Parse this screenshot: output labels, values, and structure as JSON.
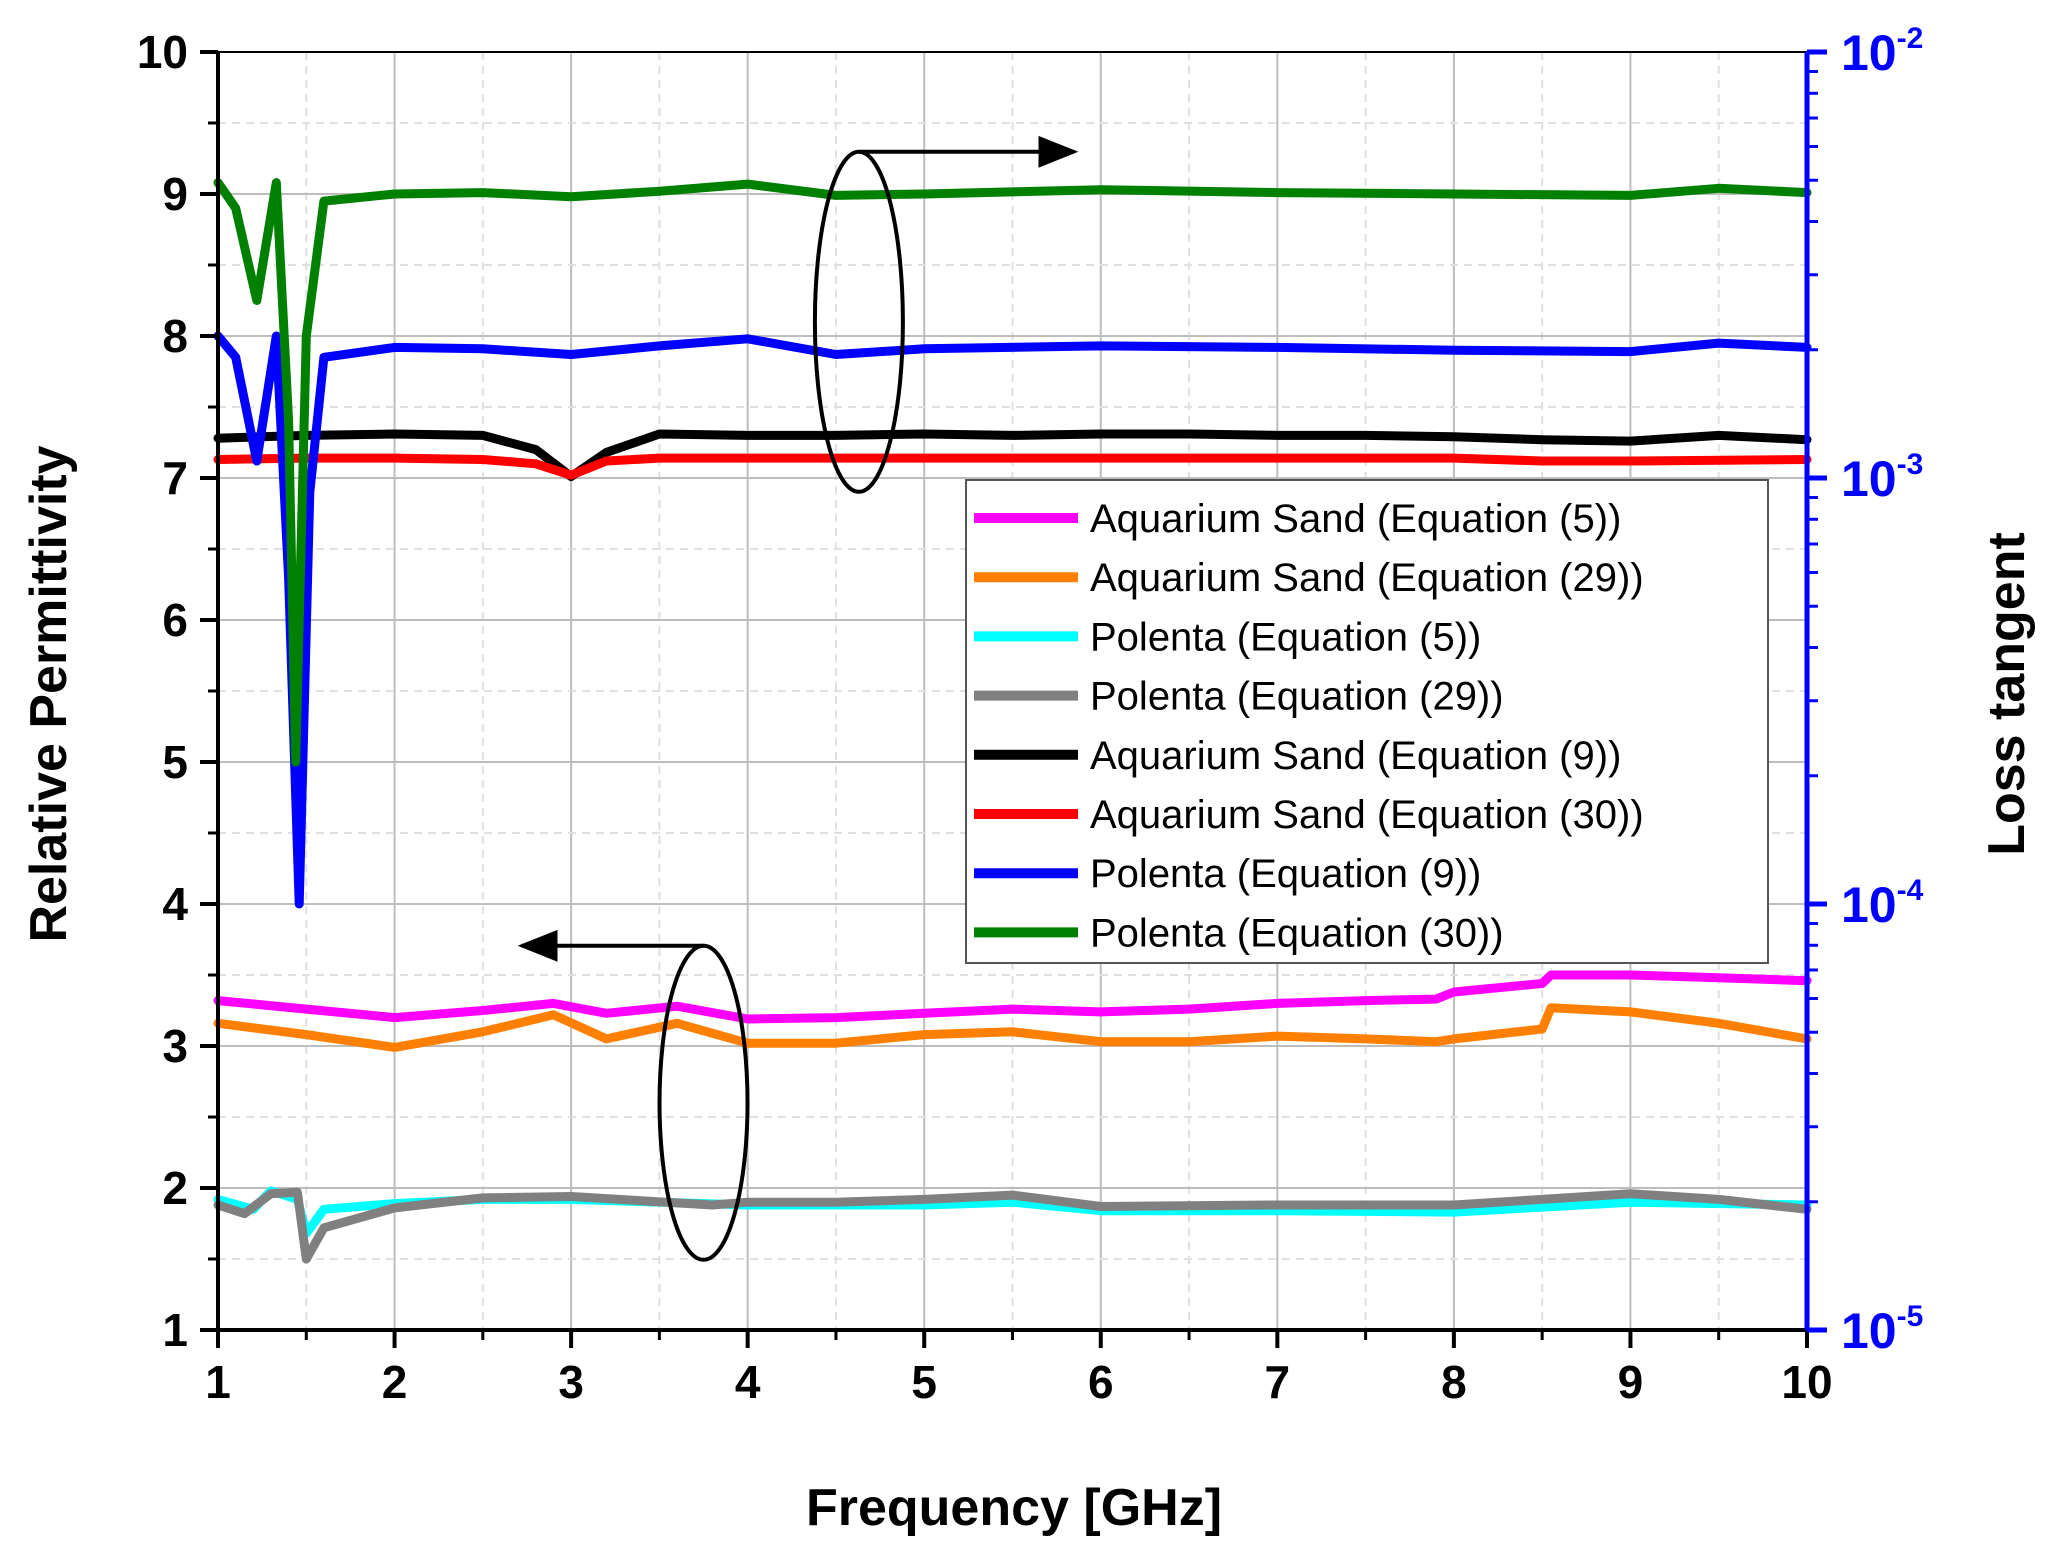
{
  "chart_data": {
    "type": "line",
    "xlabel": "Frequency [GHz]",
    "ylabel_left": "Relative Permittivity",
    "ylabel_right": "Loss tangent",
    "xlim": [
      1,
      10
    ],
    "ylim_left": [
      1,
      10
    ],
    "ylim_right": [
      1e-05,
      0.01
    ],
    "right_axis_scale": "log",
    "right_axis_color": "#0000ff",
    "grid": true,
    "legend_position": "center-right",
    "x_ticks": [
      "1",
      "2",
      "3",
      "4",
      "5",
      "6",
      "7",
      "8",
      "9",
      "10"
    ],
    "y_left_ticks": [
      "1",
      "2",
      "3",
      "4",
      "5",
      "6",
      "7",
      "8",
      "9",
      "10"
    ],
    "y_right_ticks": [
      {
        "base": "10",
        "exp": "-5",
        "value": 1e-05
      },
      {
        "base": "10",
        "exp": "-4",
        "value": 0.0001
      },
      {
        "base": "10",
        "exp": "-3",
        "value": 0.001
      },
      {
        "base": "10",
        "exp": "-2",
        "value": 0.01
      }
    ],
    "annotations": [
      {
        "label": "ellipse-right-axis",
        "arrow": "right",
        "center": [
          4.63,
          8.1
        ],
        "points_to": "Loss tangent"
      },
      {
        "label": "ellipse-left-axis",
        "arrow": "left",
        "center": [
          3.75,
          2.6
        ],
        "points_to": "Relative Permittivity"
      }
    ],
    "series": [
      {
        "name": "Aquarium Sand (Equation (5))",
        "color": "#ff00ff",
        "axis": "left",
        "x": [
          1.0,
          1.5,
          2.0,
          2.5,
          2.9,
          3.2,
          3.6,
          4.0,
          4.5,
          5.0,
          5.5,
          6.0,
          6.5,
          7.0,
          7.5,
          7.9,
          8.0,
          8.5,
          8.55,
          9.0,
          9.5,
          10.0
        ],
        "values": [
          3.32,
          3.26,
          3.2,
          3.25,
          3.3,
          3.23,
          3.28,
          3.19,
          3.2,
          3.23,
          3.26,
          3.24,
          3.26,
          3.3,
          3.32,
          3.33,
          3.38,
          3.44,
          3.5,
          3.5,
          3.48,
          3.46
        ]
      },
      {
        "name": "Aquarium Sand (Equation (29))",
        "color": "#ff8000",
        "axis": "left",
        "x": [
          1.0,
          1.5,
          2.0,
          2.5,
          2.9,
          3.2,
          3.6,
          4.0,
          4.5,
          5.0,
          5.5,
          6.0,
          6.5,
          7.0,
          7.5,
          7.9,
          8.0,
          8.5,
          8.55,
          9.0,
          9.5,
          10.0
        ],
        "values": [
          3.16,
          3.08,
          2.99,
          3.1,
          3.22,
          3.05,
          3.16,
          3.02,
          3.02,
          3.08,
          3.1,
          3.03,
          3.03,
          3.07,
          3.05,
          3.03,
          3.05,
          3.12,
          3.27,
          3.24,
          3.16,
          3.05
        ]
      },
      {
        "name": "Polenta (Equation (5))",
        "color": "#00ffff",
        "axis": "left",
        "x": [
          1.0,
          1.2,
          1.3,
          1.45,
          1.5,
          1.6,
          2.0,
          2.5,
          3.0,
          4.0,
          5.0,
          5.5,
          6.0,
          7.0,
          8.0,
          9.0,
          10.0
        ],
        "values": [
          1.92,
          1.85,
          1.98,
          1.92,
          1.68,
          1.85,
          1.89,
          1.92,
          1.92,
          1.88,
          1.88,
          1.9,
          1.84,
          1.84,
          1.83,
          1.9,
          1.88
        ]
      },
      {
        "name": "Polenta (Equation (29))",
        "color": "#808080",
        "axis": "left",
        "x": [
          1.0,
          1.15,
          1.3,
          1.45,
          1.5,
          1.6,
          2.0,
          2.5,
          3.0,
          3.8,
          4.0,
          4.5,
          5.0,
          5.5,
          6.0,
          7.0,
          8.0,
          9.0,
          9.5,
          10.0
        ],
        "values": [
          1.88,
          1.82,
          1.96,
          1.97,
          1.5,
          1.72,
          1.86,
          1.93,
          1.94,
          1.88,
          1.9,
          1.9,
          1.92,
          1.95,
          1.87,
          1.88,
          1.88,
          1.96,
          1.92,
          1.85
        ]
      },
      {
        "name": "Aquarium Sand (Equation (9))",
        "color": "#000000",
        "axis": "left",
        "x": [
          1.0,
          1.5,
          2.0,
          2.5,
          2.8,
          3.0,
          3.2,
          3.5,
          4.0,
          4.5,
          5.0,
          5.5,
          6.0,
          6.5,
          7.0,
          7.5,
          8.0,
          8.5,
          9.0,
          9.5,
          10.0
        ],
        "values": [
          7.28,
          7.3,
          7.31,
          7.3,
          7.2,
          7.01,
          7.18,
          7.31,
          7.3,
          7.3,
          7.31,
          7.3,
          7.31,
          7.31,
          7.3,
          7.3,
          7.29,
          7.27,
          7.26,
          7.3,
          7.27
        ]
      },
      {
        "name": "Aquarium Sand (Equation (30))",
        "color": "#ff0000",
        "axis": "left",
        "x": [
          1.0,
          1.5,
          2.0,
          2.5,
          2.8,
          3.0,
          3.2,
          3.5,
          4.0,
          5.0,
          6.0,
          7.0,
          8.0,
          8.5,
          9.0,
          10.0
        ],
        "values": [
          7.13,
          7.14,
          7.14,
          7.13,
          7.1,
          7.02,
          7.12,
          7.14,
          7.14,
          7.14,
          7.14,
          7.14,
          7.14,
          7.12,
          7.12,
          7.13
        ]
      },
      {
        "name": "Polenta (Equation (9))",
        "color": "#0000ff",
        "axis": "left",
        "x": [
          1.0,
          1.1,
          1.22,
          1.33,
          1.4,
          1.46,
          1.52,
          1.6,
          2.0,
          2.5,
          3.0,
          3.5,
          4.0,
          4.5,
          5.0,
          6.0,
          7.0,
          8.0,
          9.0,
          9.5,
          10.0
        ],
        "values": [
          8.0,
          7.85,
          7.12,
          8.0,
          6.3,
          4.0,
          6.9,
          7.85,
          7.92,
          7.91,
          7.87,
          7.93,
          7.98,
          7.87,
          7.91,
          7.93,
          7.92,
          7.9,
          7.89,
          7.95,
          7.92
        ]
      },
      {
        "name": "Polenta (Equation (30))",
        "color": "#008000",
        "axis": "left",
        "x": [
          1.0,
          1.1,
          1.22,
          1.33,
          1.4,
          1.44,
          1.5,
          1.6,
          2.0,
          2.5,
          3.0,
          3.5,
          4.0,
          4.5,
          5.0,
          6.0,
          7.0,
          8.0,
          9.0,
          9.5,
          10.0
        ],
        "values": [
          9.08,
          8.9,
          8.25,
          9.08,
          7.4,
          5.0,
          8.0,
          8.95,
          9.0,
          9.01,
          8.98,
          9.02,
          9.07,
          8.99,
          9.0,
          9.03,
          9.01,
          9.0,
          8.99,
          9.04,
          9.01
        ]
      }
    ]
  }
}
